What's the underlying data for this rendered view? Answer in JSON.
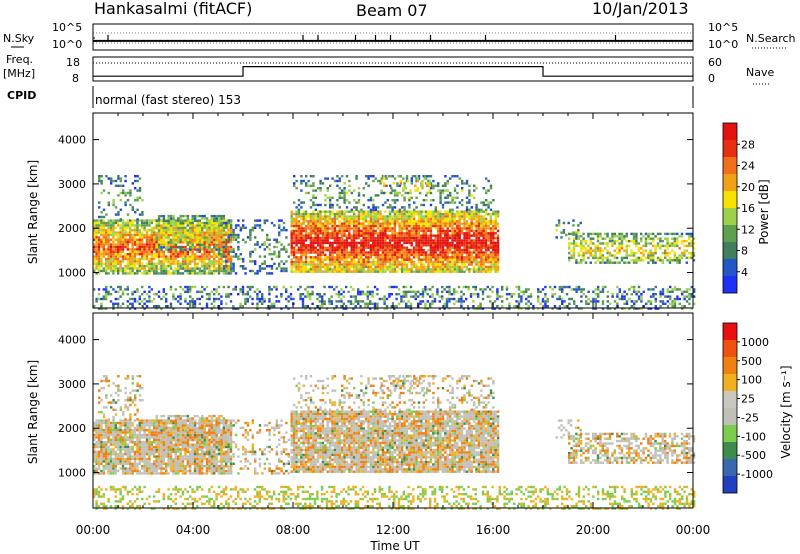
{
  "header": {
    "station": "Hankasalmi (fitACF)",
    "beam": "Beam 07",
    "date": "10/Jan/2013"
  },
  "strip_labels": {
    "nsky": "N.Sky",
    "nsearch": "N.Search",
    "freq_top": "Freq.",
    "freq_unit": "[MHz]",
    "cpid": "CPID",
    "nave": "Nave",
    "mode": "normal (fast stereo) 153"
  },
  "chart_data": [
    {
      "type": "line",
      "panel": "noise",
      "y_left_ticks": [
        "10^5",
        "10^0"
      ],
      "y_right_ticks": [
        "10^5",
        "10^0"
      ],
      "series": [
        {
          "name": "N.Sky"
        },
        {
          "name": "N.Search"
        }
      ],
      "baseline_level": 0.35,
      "spikes_hours": [
        0.6,
        8.4,
        9.0,
        10.5,
        11.3,
        11.9,
        13.5,
        15.7,
        20.9
      ]
    },
    {
      "type": "line",
      "panel": "frequency",
      "y_left_ticks": [
        "18",
        "8"
      ],
      "y_right_ticks": [
        "60",
        "0"
      ],
      "series": [
        {
          "name": "Freq.",
          "x_hours": [
            0,
            6,
            6,
            18,
            18,
            24
          ],
          "levels": [
            0.2,
            0.2,
            0.6,
            0.6,
            0.2,
            0.2
          ]
        },
        {
          "name": "Nave",
          "level": 0.75
        }
      ]
    },
    {
      "type": "heatmap",
      "panel": "power",
      "ylabel": "Slant Range [km]",
      "ylim": [
        200,
        4600
      ],
      "y_ticks": [
        1000,
        2000,
        3000,
        4000
      ],
      "xlim": [
        0,
        24
      ],
      "x_ticks": [
        "00:00",
        "04:00",
        "08:00",
        "12:00",
        "16:00",
        "20:00",
        "00:00"
      ],
      "colorbar": {
        "label": "Power [dB]",
        "ticks": [
          "4",
          "8",
          "12",
          "16",
          "20",
          "24",
          "28"
        ],
        "colors": [
          "#1f2ff5",
          "#2357c8",
          "#3f7f5f",
          "#5fa050",
          "#9cd24a",
          "#f7e200",
          "#f2a018",
          "#ef7018",
          "#e83010",
          "#e51010"
        ]
      }
    },
    {
      "type": "heatmap",
      "panel": "velocity",
      "ylabel": "Velocity [m s^-1]",
      "ylabel_left": "Slant Range [km]",
      "ylim": [
        200,
        4600
      ],
      "y_ticks": [
        1000,
        2000,
        3000,
        4000
      ],
      "xlim": [
        0,
        24
      ],
      "x_ticks": [
        "00:00",
        "04:00",
        "08:00",
        "12:00",
        "16:00",
        "20:00",
        "00:00"
      ],
      "xlabel": "Time UT",
      "colorbar": {
        "label": "Velocity [m s⁻¹]",
        "ticks": [
          "1000",
          "500",
          "100",
          "25",
          "-25",
          "-100",
          "-500",
          "-1000"
        ],
        "colors": [
          "#2040c0",
          "#3868b0",
          "#3c8c50",
          "#7ccc50",
          "#c0c0b8",
          "#c8c8c0",
          "#f0b020",
          "#f08010",
          "#f05010",
          "#e81010"
        ]
      }
    }
  ]
}
